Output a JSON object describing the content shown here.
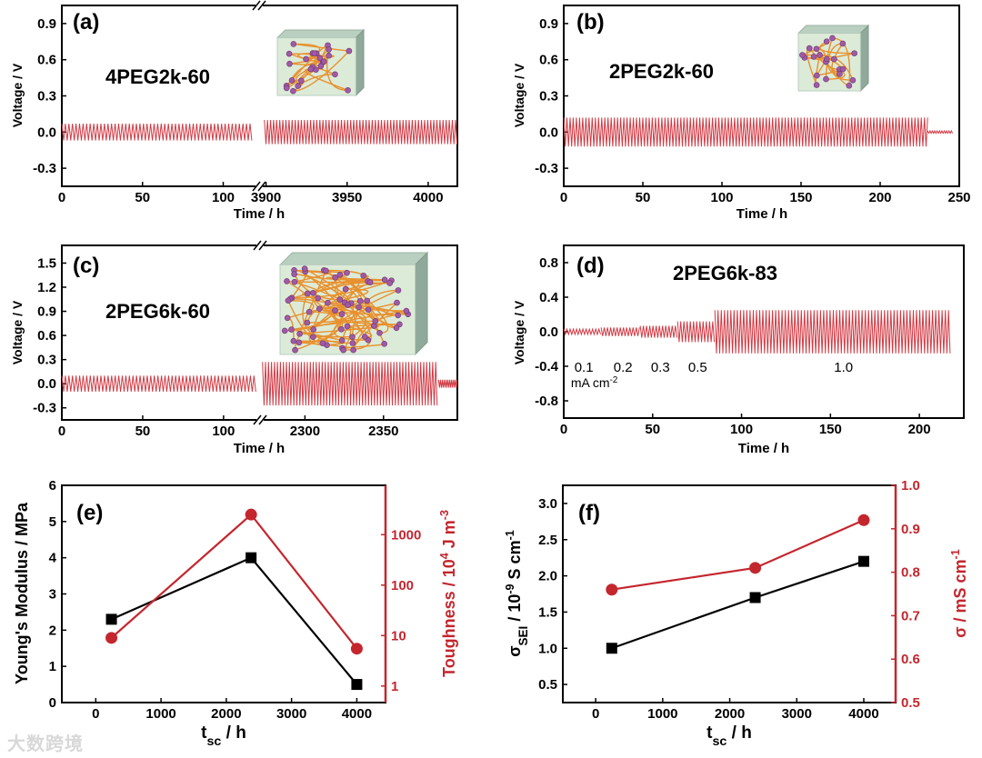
{
  "colors": {
    "axis": "#000000",
    "red": "#c4262e",
    "wave": "#d23a44",
    "black_series": "#000000"
  },
  "watermark": "大数跨境",
  "chart_data": [
    {
      "id": "a",
      "type": "line",
      "panel_label": "(a)",
      "sample": "4PEG2k-60",
      "xlabel": "Time / h",
      "ylabel": "Voltage / V",
      "ylim": [
        -0.45,
        1.05
      ],
      "y_ticks": [
        "-0.3",
        "0.0",
        "0.3",
        "0.6",
        "0.9"
      ],
      "x_segments": [
        [
          0,
          120
        ],
        [
          3898,
          4018
        ]
      ],
      "x_ticks": [
        "0",
        "50",
        "100",
        "3900",
        "3950",
        "4000"
      ],
      "axis_break": true,
      "inset": "polymer-network",
      "series": [
        {
          "name": "voltage",
          "segments": [
            {
              "t": [
                0,
                118
              ],
              "amp": 0.07,
              "period_h": 2.2
            },
            {
              "t": [
                3899,
                4018
              ],
              "amp": 0.1,
              "period_h": 1.9
            }
          ]
        }
      ]
    },
    {
      "id": "b",
      "type": "line",
      "panel_label": "(b)",
      "sample": "2PEG2k-60",
      "xlabel": "Time / h",
      "ylabel": "Voltage / V",
      "ylim": [
        -0.45,
        1.05
      ],
      "y_ticks": [
        "-0.3",
        "0.0",
        "0.3",
        "0.6",
        "0.9"
      ],
      "x_segments": [
        [
          0,
          250
        ]
      ],
      "x_ticks": [
        "0",
        "50",
        "100",
        "150",
        "200",
        "250"
      ],
      "axis_break": false,
      "inset": "polymer-network",
      "series": [
        {
          "name": "voltage",
          "segments": [
            {
              "t": [
                0,
                230
              ],
              "amp": 0.12,
              "period_h": 2.0
            },
            {
              "t": [
                230,
                246
              ],
              "amp": 0.01,
              "period_h": 1.5
            }
          ]
        }
      ]
    },
    {
      "id": "c",
      "type": "line",
      "panel_label": "(c)",
      "sample": "2PEG6k-60",
      "xlabel": "Time / h",
      "ylabel": "Voltage / V",
      "ylim": [
        -0.45,
        1.72
      ],
      "y_ticks": [
        "-0.3",
        "0.0",
        "0.3",
        "0.6",
        "0.9",
        "1.2",
        "1.5"
      ],
      "x_segments": [
        [
          0,
          122
        ],
        [
          2272,
          2397
        ]
      ],
      "x_ticks": [
        "0",
        "50",
        "100",
        "2300",
        "2350"
      ],
      "axis_break": true,
      "inset": "polymer-network",
      "series": [
        {
          "name": "voltage",
          "segments": [
            {
              "t": [
                0,
                120
              ],
              "amp": 0.1,
              "period_h": 2.2
            },
            {
              "t": [
                2273,
                2385
              ],
              "amp": 0.27,
              "period_h": 1.9
            },
            {
              "t": [
                2385,
                2397
              ],
              "amp": 0.05,
              "period_h": 1.2
            }
          ]
        }
      ]
    },
    {
      "id": "d",
      "type": "line",
      "panel_label": "(d)",
      "sample": "2PEG6k-83",
      "xlabel": "Time / h",
      "ylabel": "Voltage / V",
      "ylim": [
        -1.0,
        1.0
      ],
      "y_ticks": [
        "-0.8",
        "-0.4",
        "0.0",
        "0.4",
        "0.8"
      ],
      "x_segments": [
        [
          0,
          225
        ]
      ],
      "x_ticks": [
        "0",
        "50",
        "100",
        "150",
        "200"
      ],
      "axis_break": false,
      "annotations": [
        {
          "text": "0.1",
          "x": 6,
          "y": -0.4
        },
        {
          "text": "0.2",
          "x": 28,
          "y": -0.4
        },
        {
          "text": "0.3",
          "x": 49,
          "y": -0.4
        },
        {
          "text": "0.5",
          "x": 70,
          "y": -0.4
        },
        {
          "text": "1.0",
          "x": 152,
          "y": -0.4
        }
      ],
      "unit_label": {
        "base": "mA cm",
        "sup": "-2"
      },
      "series": [
        {
          "name": "voltage",
          "segments": [
            {
              "t": [
                0,
                21
              ],
              "amp": 0.03,
              "period_h": 1.8
            },
            {
              "t": [
                21,
                43
              ],
              "amp": 0.05,
              "period_h": 1.8
            },
            {
              "t": [
                43,
                64
              ],
              "amp": 0.07,
              "period_h": 1.8
            },
            {
              "t": [
                64,
                85
              ],
              "amp": 0.12,
              "period_h": 1.8
            },
            {
              "t": [
                85,
                218
              ],
              "amp": 0.25,
              "period_h": 1.8
            }
          ]
        }
      ]
    },
    {
      "id": "e",
      "type": "line",
      "panel_label": "(e)",
      "xlabel": [
        {
          "t": "t"
        },
        {
          "t": "sc",
          "sub": true
        },
        {
          "t": " / h"
        }
      ],
      "ylabel": [
        {
          "t": "Young's Modulus / MPa"
        }
      ],
      "ylabel_right": [
        {
          "t": "Toughness / 10"
        },
        {
          "t": "4",
          "sup": true
        },
        {
          "t": " J m"
        },
        {
          "t": "-3",
          "sup": true
        }
      ],
      "xlim": [
        -520,
        4440
      ],
      "x_ticks": [
        "0",
        "1000",
        "2000",
        "3000",
        "4000"
      ],
      "ylim": [
        0,
        6
      ],
      "y_ticks": [
        "0",
        "1",
        "2",
        "3",
        "4",
        "5",
        "6"
      ],
      "ylim_right_log": [
        0.47,
        9500
      ],
      "y_ticks_right": [
        "1",
        "10",
        "100",
        "1000"
      ],
      "series": [
        {
          "name": "Young's Modulus",
          "axis": "left",
          "marker": "square",
          "color": "#000000",
          "x": [
            240,
            2380,
            4000
          ],
          "y": [
            2.3,
            4.0,
            0.5
          ]
        },
        {
          "name": "Toughness",
          "axis": "right",
          "marker": "circle",
          "color": "#c4262e",
          "x": [
            240,
            2380,
            4000
          ],
          "y": [
            9,
            2500,
            5.5
          ]
        }
      ]
    },
    {
      "id": "f",
      "type": "line",
      "panel_label": "(f)",
      "xlabel": [
        {
          "t": "t"
        },
        {
          "t": "sc",
          "sub": true
        },
        {
          "t": " / h"
        }
      ],
      "ylabel": [
        {
          "t": "σ"
        },
        {
          "t": "SEI",
          "sub": true
        },
        {
          "t": " / 10"
        },
        {
          "t": "-9",
          "sup": true
        },
        {
          "t": " S cm"
        },
        {
          "t": "-1",
          "sup": true
        }
      ],
      "ylabel_right": [
        {
          "t": "σ / mS cm"
        },
        {
          "t": "-1",
          "sup": true
        }
      ],
      "xlim": [
        -490,
        4475
      ],
      "x_ticks": [
        "0",
        "1000",
        "2000",
        "3000",
        "4000"
      ],
      "ylim": [
        0.25,
        3.25
      ],
      "y_ticks": [
        "0.5",
        "1.0",
        "1.5",
        "2.0",
        "2.5",
        "3.0"
      ],
      "ylim_right": [
        0.5,
        1.0
      ],
      "y_ticks_right": [
        "0.5",
        "0.6",
        "0.7",
        "0.8",
        "0.9",
        "1.0"
      ],
      "series": [
        {
          "name": "σSEI",
          "axis": "left",
          "marker": "square",
          "color": "#000000",
          "x": [
            240,
            2380,
            4000
          ],
          "y": [
            1.0,
            1.7,
            2.2
          ]
        },
        {
          "name": "σ",
          "axis": "right",
          "marker": "circle",
          "color": "#c4262e",
          "x": [
            240,
            2380,
            4000
          ],
          "y": [
            0.76,
            0.81,
            0.92
          ]
        }
      ]
    }
  ]
}
